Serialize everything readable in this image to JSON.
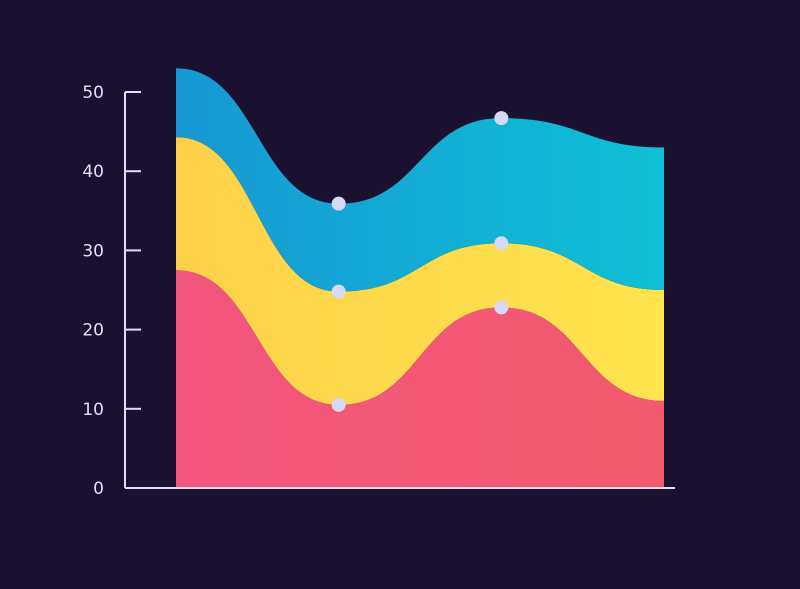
{
  "chart_data": {
    "type": "area",
    "stacked": true,
    "title": "",
    "xlabel": "",
    "ylabel": "",
    "x": [
      0,
      1,
      2,
      3
    ],
    "ylim": [
      0,
      50
    ],
    "yticks": [
      0,
      10,
      20,
      30,
      40,
      50
    ],
    "grid": false,
    "legend": "none",
    "series": [
      {
        "values": [
          27.5,
          10.5,
          22.8,
          11.0
        ],
        "color": "#f2567e",
        "color_end": "#f25a6e"
      },
      {
        "values": [
          16.8,
          14.3,
          8.1,
          14.0
        ],
        "color": "#fdd14a",
        "color_end": "#ffe44e"
      },
      {
        "values": [
          8.7,
          11.1,
          15.8,
          18.0
        ],
        "color": "#1798d4",
        "color_end": "#0fc0d4"
      }
    ],
    "markers": [
      {
        "x": 1,
        "y": 10.5
      },
      {
        "x": 1,
        "y": 24.8
      },
      {
        "x": 1,
        "y": 35.9
      },
      {
        "x": 2,
        "y": 22.8
      },
      {
        "x": 2,
        "y": 30.9
      },
      {
        "x": 2,
        "y": 46.7
      }
    ],
    "axis_color": "#e8dcf0",
    "marker_color": "#d6d9f5"
  }
}
